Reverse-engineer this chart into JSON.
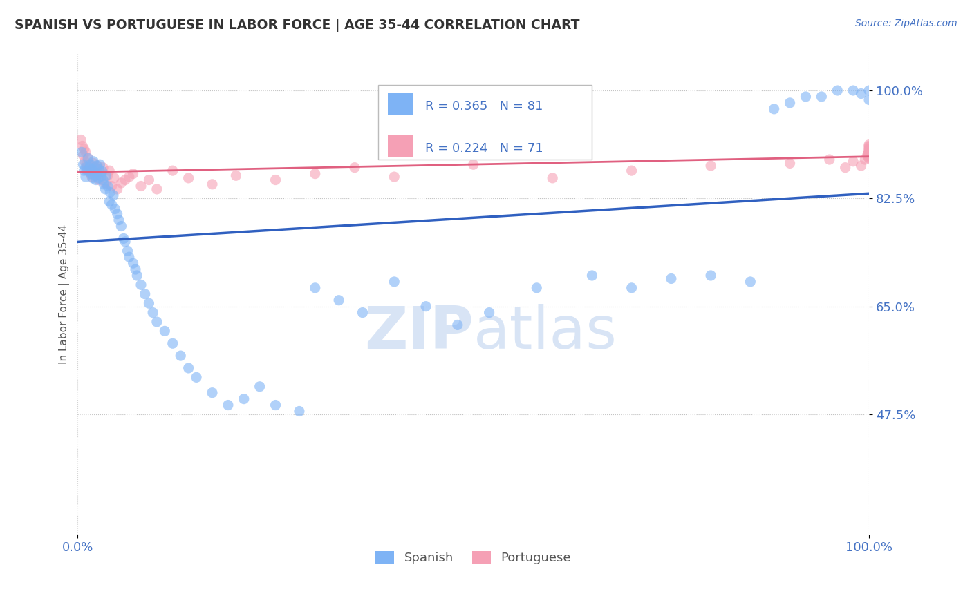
{
  "title": "SPANISH VS PORTUGUESE IN LABOR FORCE | AGE 35-44 CORRELATION CHART",
  "source_text": "Source: ZipAtlas.com",
  "ylabel": "In Labor Force | Age 35-44",
  "xlim": [
    0.0,
    1.0
  ],
  "ylim": [
    0.28,
    1.06
  ],
  "yticks": [
    0.475,
    0.65,
    0.825,
    1.0
  ],
  "ytick_labels": [
    "47.5%",
    "65.0%",
    "82.5%",
    "100.0%"
  ],
  "xtick_labels": [
    "0.0%",
    "100.0%"
  ],
  "spanish_R": 0.365,
  "spanish_N": 81,
  "portuguese_R": 0.224,
  "portuguese_N": 71,
  "spanish_color": "#7EB3F5",
  "portuguese_color": "#F5A0B5",
  "spanish_trend_color": "#3060C0",
  "portuguese_trend_color": "#E06080",
  "background_color": "#FFFFFF",
  "title_color": "#333333",
  "axis_color": "#4472C4",
  "grid_color": "#AAAAAA",
  "watermark_color": "#D8E4F5",
  "sp_x": [
    0.005,
    0.007,
    0.008,
    0.01,
    0.01,
    0.012,
    0.013,
    0.015,
    0.016,
    0.017,
    0.018,
    0.019,
    0.02,
    0.021,
    0.022,
    0.023,
    0.024,
    0.025,
    0.026,
    0.027,
    0.028,
    0.03,
    0.031,
    0.032,
    0.033,
    0.035,
    0.036,
    0.038,
    0.04,
    0.041,
    0.043,
    0.045,
    0.047,
    0.05,
    0.052,
    0.055,
    0.058,
    0.06,
    0.063,
    0.065,
    0.07,
    0.073,
    0.075,
    0.08,
    0.085,
    0.09,
    0.095,
    0.1,
    0.11,
    0.12,
    0.13,
    0.14,
    0.15,
    0.17,
    0.19,
    0.21,
    0.23,
    0.25,
    0.28,
    0.3,
    0.33,
    0.36,
    0.4,
    0.44,
    0.48,
    0.52,
    0.58,
    0.65,
    0.7,
    0.75,
    0.8,
    0.85,
    0.88,
    0.9,
    0.92,
    0.94,
    0.96,
    0.98,
    0.99,
    1.0,
    1.0
  ],
  "sp_y": [
    0.9,
    0.88,
    0.87,
    0.875,
    0.86,
    0.87,
    0.89,
    0.875,
    0.88,
    0.865,
    0.872,
    0.858,
    0.885,
    0.869,
    0.862,
    0.855,
    0.878,
    0.865,
    0.858,
    0.872,
    0.88,
    0.861,
    0.869,
    0.855,
    0.848,
    0.84,
    0.862,
    0.845,
    0.82,
    0.835,
    0.815,
    0.83,
    0.808,
    0.8,
    0.79,
    0.78,
    0.76,
    0.755,
    0.74,
    0.73,
    0.72,
    0.71,
    0.7,
    0.685,
    0.67,
    0.655,
    0.64,
    0.625,
    0.61,
    0.59,
    0.57,
    0.55,
    0.535,
    0.51,
    0.49,
    0.5,
    0.52,
    0.49,
    0.48,
    0.68,
    0.66,
    0.64,
    0.69,
    0.65,
    0.62,
    0.64,
    0.68,
    0.7,
    0.68,
    0.695,
    0.7,
    0.69,
    0.97,
    0.98,
    0.99,
    0.99,
    1.0,
    1.0,
    0.995,
    1.0,
    0.985
  ],
  "pt_x": [
    0.004,
    0.006,
    0.007,
    0.008,
    0.009,
    0.01,
    0.011,
    0.012,
    0.013,
    0.014,
    0.015,
    0.016,
    0.017,
    0.018,
    0.019,
    0.02,
    0.021,
    0.022,
    0.023,
    0.025,
    0.027,
    0.03,
    0.032,
    0.035,
    0.038,
    0.04,
    0.043,
    0.046,
    0.05,
    0.055,
    0.06,
    0.065,
    0.07,
    0.08,
    0.09,
    0.1,
    0.12,
    0.14,
    0.17,
    0.2,
    0.25,
    0.3,
    0.35,
    0.4,
    0.5,
    0.6,
    0.7,
    0.8,
    0.9,
    0.95,
    0.97,
    0.98,
    0.99,
    0.995,
    0.998,
    0.999,
    0.999,
    1.0,
    1.0,
    1.0,
    1.0,
    1.0,
    1.0,
    1.0,
    1.0,
    1.0,
    1.0,
    1.0,
    1.0,
    1.0,
    1.0
  ],
  "pt_y": [
    0.92,
    0.91,
    0.895,
    0.905,
    0.885,
    0.9,
    0.88,
    0.875,
    0.89,
    0.87,
    0.88,
    0.865,
    0.875,
    0.86,
    0.87,
    0.882,
    0.868,
    0.875,
    0.862,
    0.878,
    0.855,
    0.865,
    0.875,
    0.85,
    0.862,
    0.87,
    0.845,
    0.858,
    0.84,
    0.85,
    0.855,
    0.86,
    0.865,
    0.845,
    0.855,
    0.84,
    0.87,
    0.858,
    0.848,
    0.862,
    0.855,
    0.865,
    0.875,
    0.86,
    0.88,
    0.858,
    0.87,
    0.878,
    0.882,
    0.888,
    0.875,
    0.885,
    0.878,
    0.888,
    0.895,
    0.898,
    0.892,
    0.9,
    0.89,
    0.895,
    0.9,
    0.905,
    0.91,
    0.895,
    0.908,
    0.902,
    0.912,
    0.898,
    0.905,
    0.895,
    0.9
  ]
}
